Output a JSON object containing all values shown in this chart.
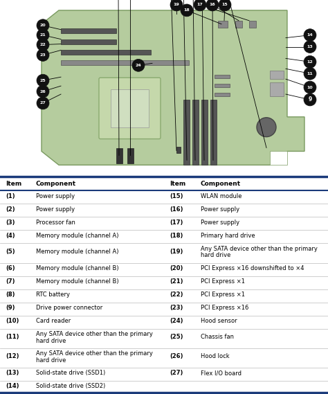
{
  "board_color": "#b5cc9e",
  "board_edge_color": "#8aaa70",
  "divider_color": "#1a3a7a",
  "row_sep_color": "#bbbbbb",
  "bg_color": "#ffffff",
  "text_color": "#000000",
  "callout_bg": "#111111",
  "callout_fg": "#ffffff",
  "left_items": [
    [
      "(1)",
      "Power supply"
    ],
    [
      "(2)",
      "Power supply"
    ],
    [
      "(3)",
      "Processor fan"
    ],
    [
      "(4)",
      "Memory module (channel A)"
    ],
    [
      "(5)",
      "Memory module (channel A)"
    ],
    [
      "(6)",
      "Memory module (channel B)"
    ],
    [
      "(7)",
      "Memory module (channel B)"
    ],
    [
      "(8)",
      "RTC battery"
    ],
    [
      "(9)",
      "Drive power connector"
    ],
    [
      "(10)",
      "Card reader"
    ],
    [
      "(11)",
      "Any SATA device other than the primary\nhard drive"
    ],
    [
      "(12)",
      "Any SATA device other than the primary\nhard drive"
    ],
    [
      "(13)",
      "Solid-state drive (SSD1)"
    ],
    [
      "(14)",
      "Solid-state drive (SSD2)"
    ]
  ],
  "right_items": [
    [
      "(15)",
      "WLAN module"
    ],
    [
      "(16)",
      "Power supply"
    ],
    [
      "(17)",
      "Power supply"
    ],
    [
      "(18)",
      "Primary hard drive"
    ],
    [
      "(19)",
      "Any SATA device other than the primary\nhard drive"
    ],
    [
      "(20)",
      "PCI Express ×16 downshifted to ×4"
    ],
    [
      "(21)",
      "PCI Express ×1"
    ],
    [
      "(22)",
      "PCI Express ×1"
    ],
    [
      "(23)",
      "PCI Express ×16"
    ],
    [
      "(24)",
      "Hood sensor"
    ],
    [
      "(25)",
      "Chassis fan"
    ],
    [
      "(26)",
      "Hood lock"
    ],
    [
      "(27)",
      "Flex I/O board"
    ],
    [
      "",
      ""
    ]
  ],
  "col_headers": [
    "Item",
    "Component",
    "Item",
    "Component"
  ]
}
